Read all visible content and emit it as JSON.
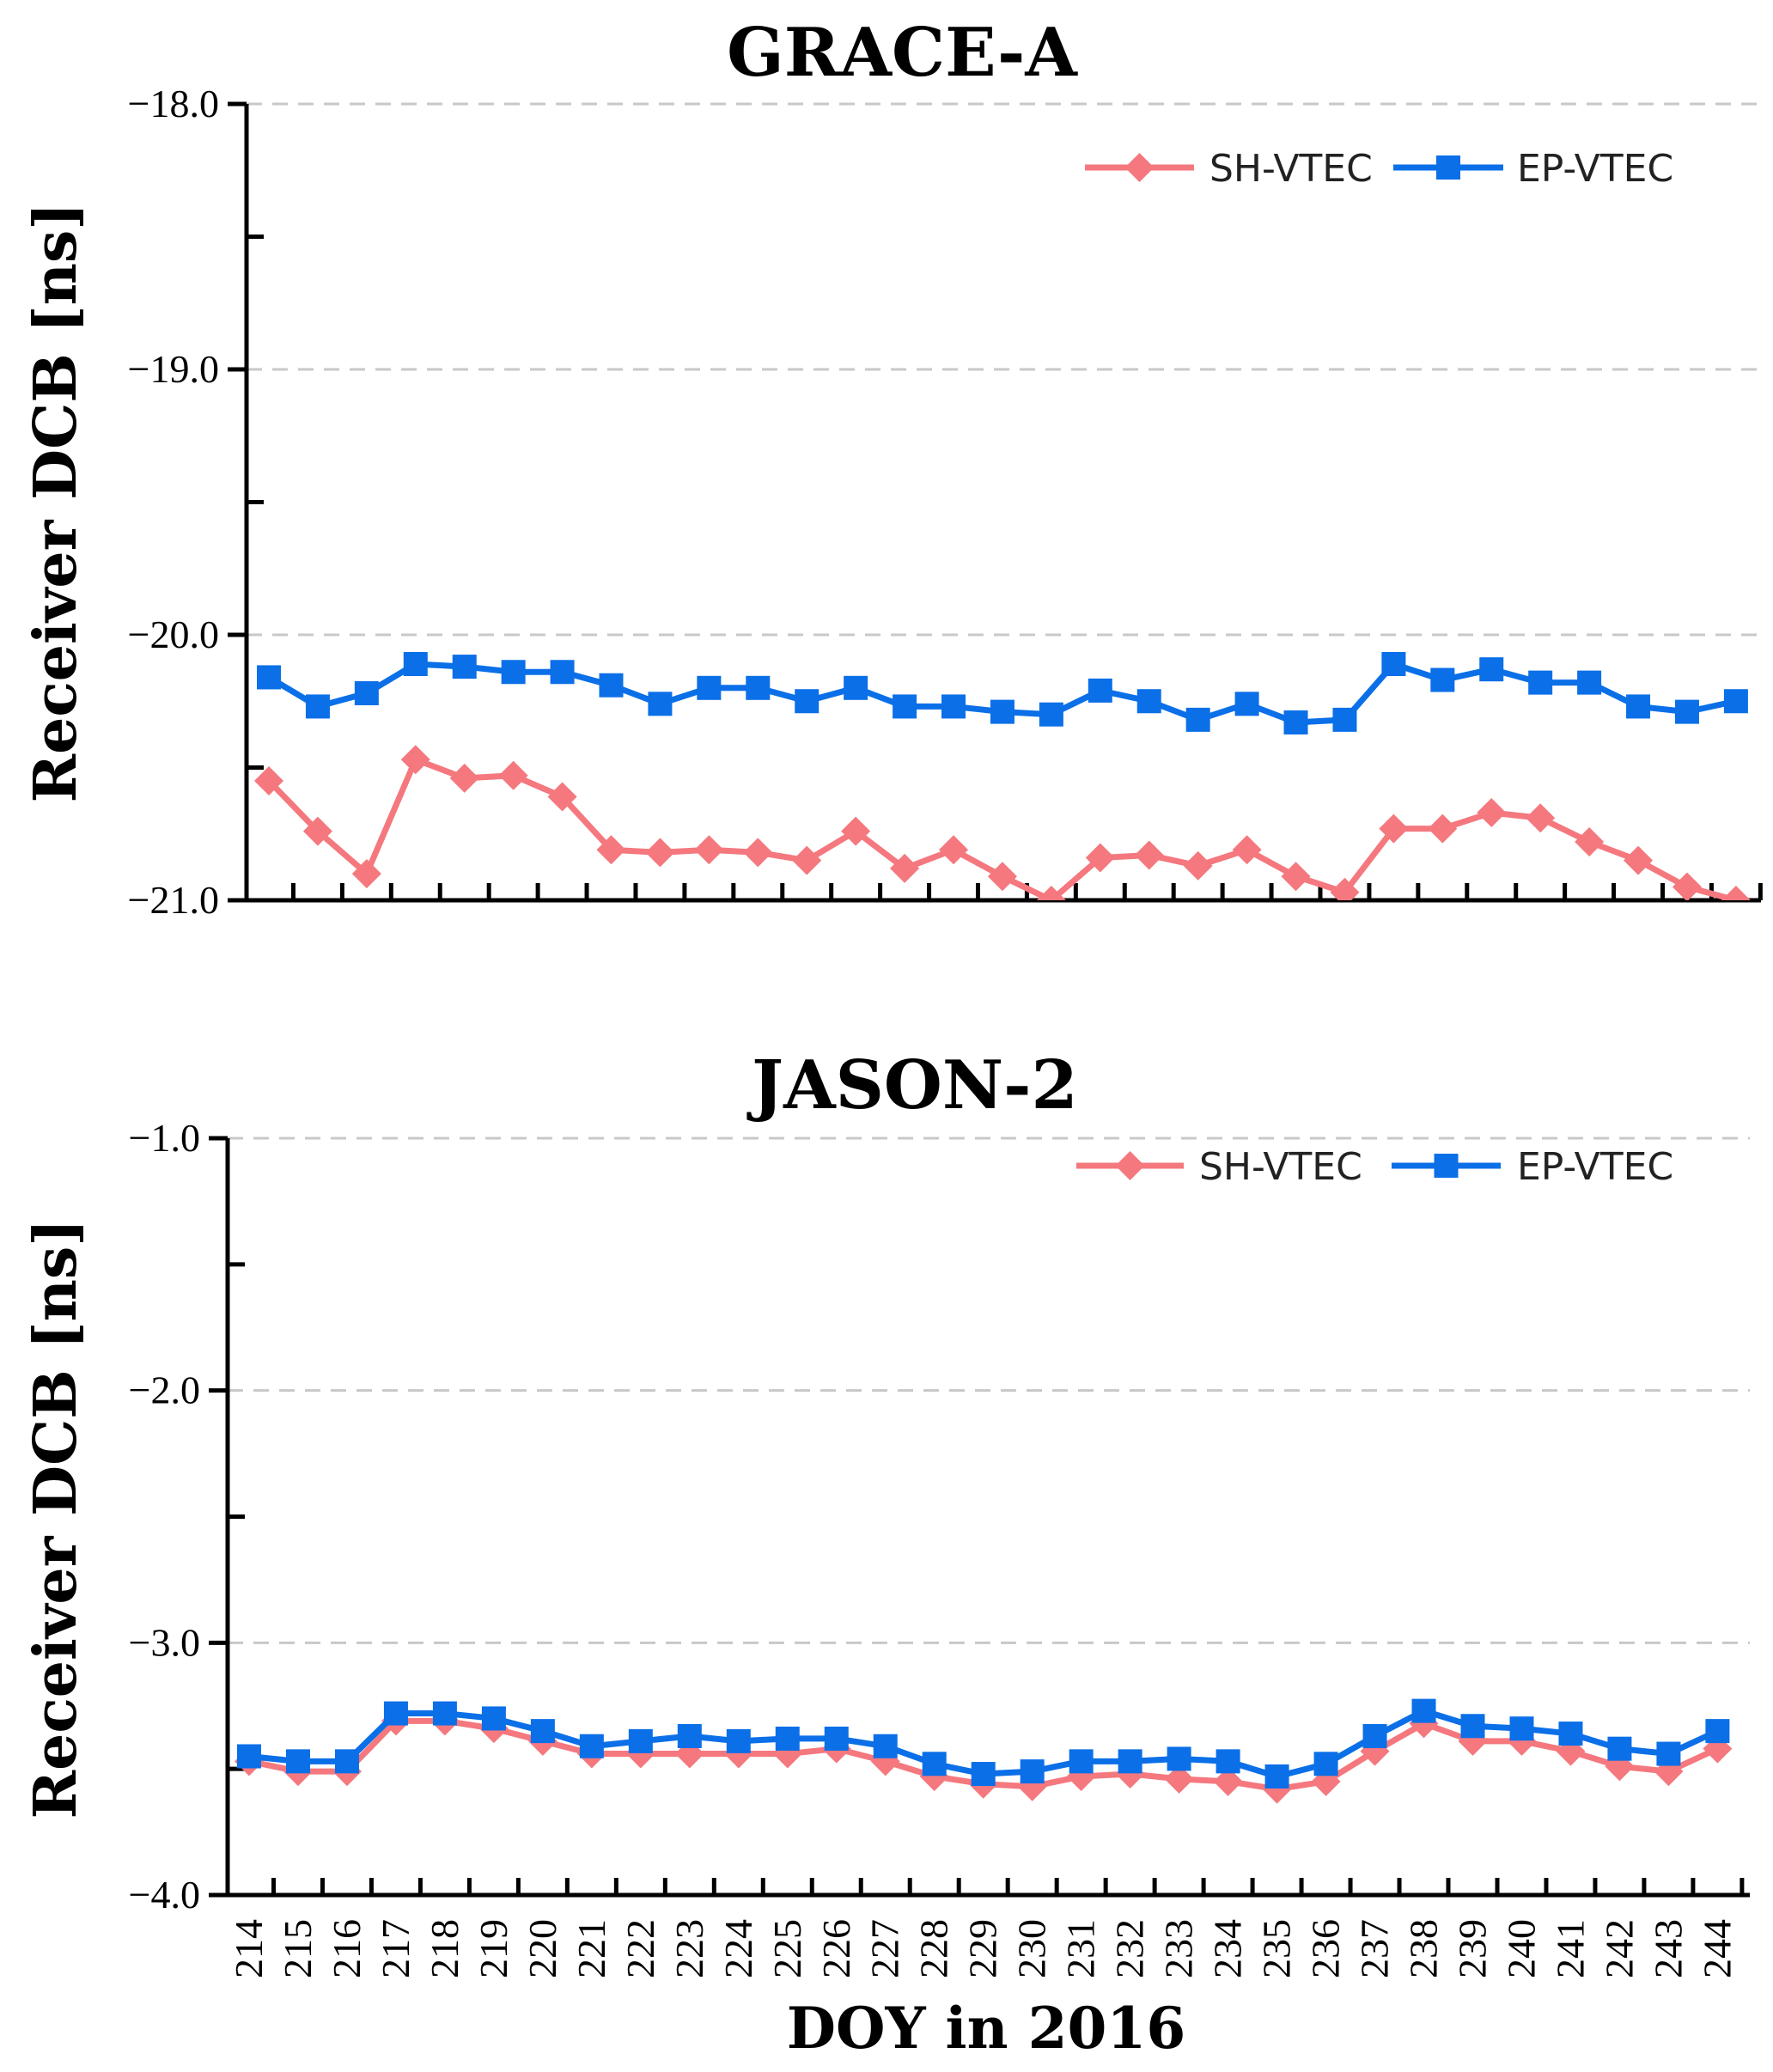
{
  "colors": {
    "sh": "#f4787e",
    "ep": "#0b6fe8"
  },
  "xlabel": "DOY in 2016",
  "chart_data": [
    {
      "type": "line",
      "title": "GRACE-A",
      "ylabel": "Receiver DCB [ns]",
      "ylim": [
        -21.0,
        -18.0
      ],
      "yticks": [
        "−18.0",
        "−19.0",
        "−20.0",
        "−21.0"
      ],
      "ytick_values": [
        -18.0,
        -19.0,
        -20.0,
        -21.0
      ],
      "categories": [
        "214",
        "215",
        "216",
        "217",
        "218",
        "219",
        "220",
        "221",
        "222",
        "223",
        "224",
        "225",
        "226",
        "227",
        "228",
        "229",
        "230",
        "231",
        "232",
        "233",
        "234",
        "235",
        "236",
        "237",
        "238",
        "239",
        "240",
        "241",
        "242",
        "243",
        "244"
      ],
      "legend": {
        "position": "top-right"
      },
      "series": [
        {
          "name": "SH-VTEC",
          "marker": "diamond",
          "values": [
            -20.55,
            -20.74,
            -20.9,
            -20.47,
            -20.54,
            -20.53,
            -20.61,
            -20.81,
            -20.82,
            -20.81,
            -20.82,
            -20.85,
            -20.74,
            -20.88,
            -20.81,
            -20.91,
            -21.0,
            -20.84,
            -20.83,
            -20.87,
            -20.81,
            -20.91,
            -20.97,
            -20.73,
            -20.73,
            -20.67,
            -20.69,
            -20.78,
            -20.85,
            -20.95,
            -21.0
          ]
        },
        {
          "name": "EP-VTEC",
          "marker": "square",
          "values": [
            -20.16,
            -20.27,
            -20.22,
            -20.11,
            -20.12,
            -20.14,
            -20.14,
            -20.19,
            -20.26,
            -20.2,
            -20.2,
            -20.25,
            -20.2,
            -20.27,
            -20.27,
            -20.29,
            -20.3,
            -20.21,
            -20.25,
            -20.32,
            -20.26,
            -20.33,
            -20.32,
            -20.11,
            -20.17,
            -20.13,
            -20.18,
            -20.18,
            -20.27,
            -20.29,
            -20.25
          ]
        }
      ]
    },
    {
      "type": "line",
      "title": "JASON-2",
      "ylabel": "Receiver DCB [ns]",
      "ylim": [
        -4.0,
        -1.0
      ],
      "yticks": [
        "−1.0",
        "−2.0",
        "−3.0",
        "−4.0"
      ],
      "ytick_values": [
        -1.0,
        -2.0,
        -3.0,
        -4.0
      ],
      "categories": [
        "214",
        "215",
        "216",
        "217",
        "218",
        "219",
        "220",
        "221",
        "222",
        "223",
        "224",
        "225",
        "226",
        "227",
        "228",
        "229",
        "230",
        "231",
        "232",
        "233",
        "234",
        "235",
        "236",
        "237",
        "238",
        "239",
        "240",
        "241",
        "242",
        "243",
        "244"
      ],
      "legend": {
        "position": "top-right"
      },
      "series": [
        {
          "name": "SH-VTEC",
          "marker": "diamond",
          "values": [
            -3.47,
            -3.51,
            -3.51,
            -3.31,
            -3.31,
            -3.34,
            -3.39,
            -3.44,
            -3.44,
            -3.44,
            -3.44,
            -3.44,
            -3.42,
            -3.47,
            -3.53,
            -3.56,
            -3.57,
            -3.53,
            -3.52,
            -3.54,
            -3.55,
            -3.58,
            -3.55,
            -3.43,
            -3.32,
            -3.39,
            -3.39,
            -3.43,
            -3.49,
            -3.51,
            -3.42
          ]
        },
        {
          "name": "EP-VTEC",
          "marker": "square",
          "values": [
            -3.45,
            -3.47,
            -3.47,
            -3.28,
            -3.28,
            -3.3,
            -3.35,
            -3.41,
            -3.39,
            -3.37,
            -3.39,
            -3.38,
            -3.38,
            -3.41,
            -3.48,
            -3.52,
            -3.51,
            -3.47,
            -3.47,
            -3.46,
            -3.47,
            -3.53,
            -3.48,
            -3.37,
            -3.27,
            -3.33,
            -3.34,
            -3.36,
            -3.42,
            -3.44,
            -3.35
          ]
        }
      ]
    }
  ]
}
